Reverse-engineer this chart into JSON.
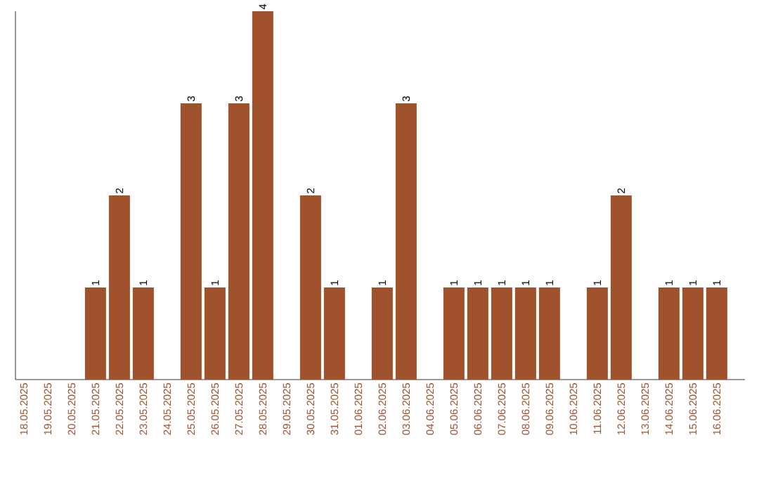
{
  "chart_data": {
    "type": "bar",
    "categories": [
      "18.05.2025",
      "19.05.2025",
      "20.05.2025",
      "21.05.2025",
      "22.05.2025",
      "23.05.2025",
      "24.05.2025",
      "25.05.2025",
      "26.05.2025",
      "27.05.2025",
      "28.05.2025",
      "29.05.2025",
      "30.05.2025",
      "31.05.2025",
      "01.06.2025",
      "02.06.2025",
      "03.06.2025",
      "04.06.2025",
      "05.06.2025",
      "06.06.2025",
      "07.06.2025",
      "08.06.2025",
      "09.06.2025",
      "10.06.2025",
      "11.06.2025",
      "12.06.2025",
      "13.06.2025",
      "14.06.2025",
      "15.06.2025",
      "16.06.2025"
    ],
    "values": [
      0,
      0,
      0,
      1,
      2,
      1,
      0,
      3,
      1,
      3,
      4,
      0,
      2,
      1,
      0,
      1,
      3,
      0,
      1,
      1,
      1,
      1,
      1,
      0,
      1,
      2,
      0,
      1,
      1,
      1
    ],
    "value_labels": [
      null,
      null,
      null,
      "1",
      "2",
      "1",
      null,
      "3",
      "1",
      "3",
      "4",
      null,
      "2",
      "1",
      null,
      "1",
      "3",
      null,
      "1",
      "1",
      "1",
      "1",
      "1",
      null,
      "1",
      "2",
      null,
      "1",
      "1",
      "1"
    ],
    "color": "#a0522d",
    "ylim": [
      0,
      4
    ],
    "tick_labels": "x",
    "grid": false
  }
}
